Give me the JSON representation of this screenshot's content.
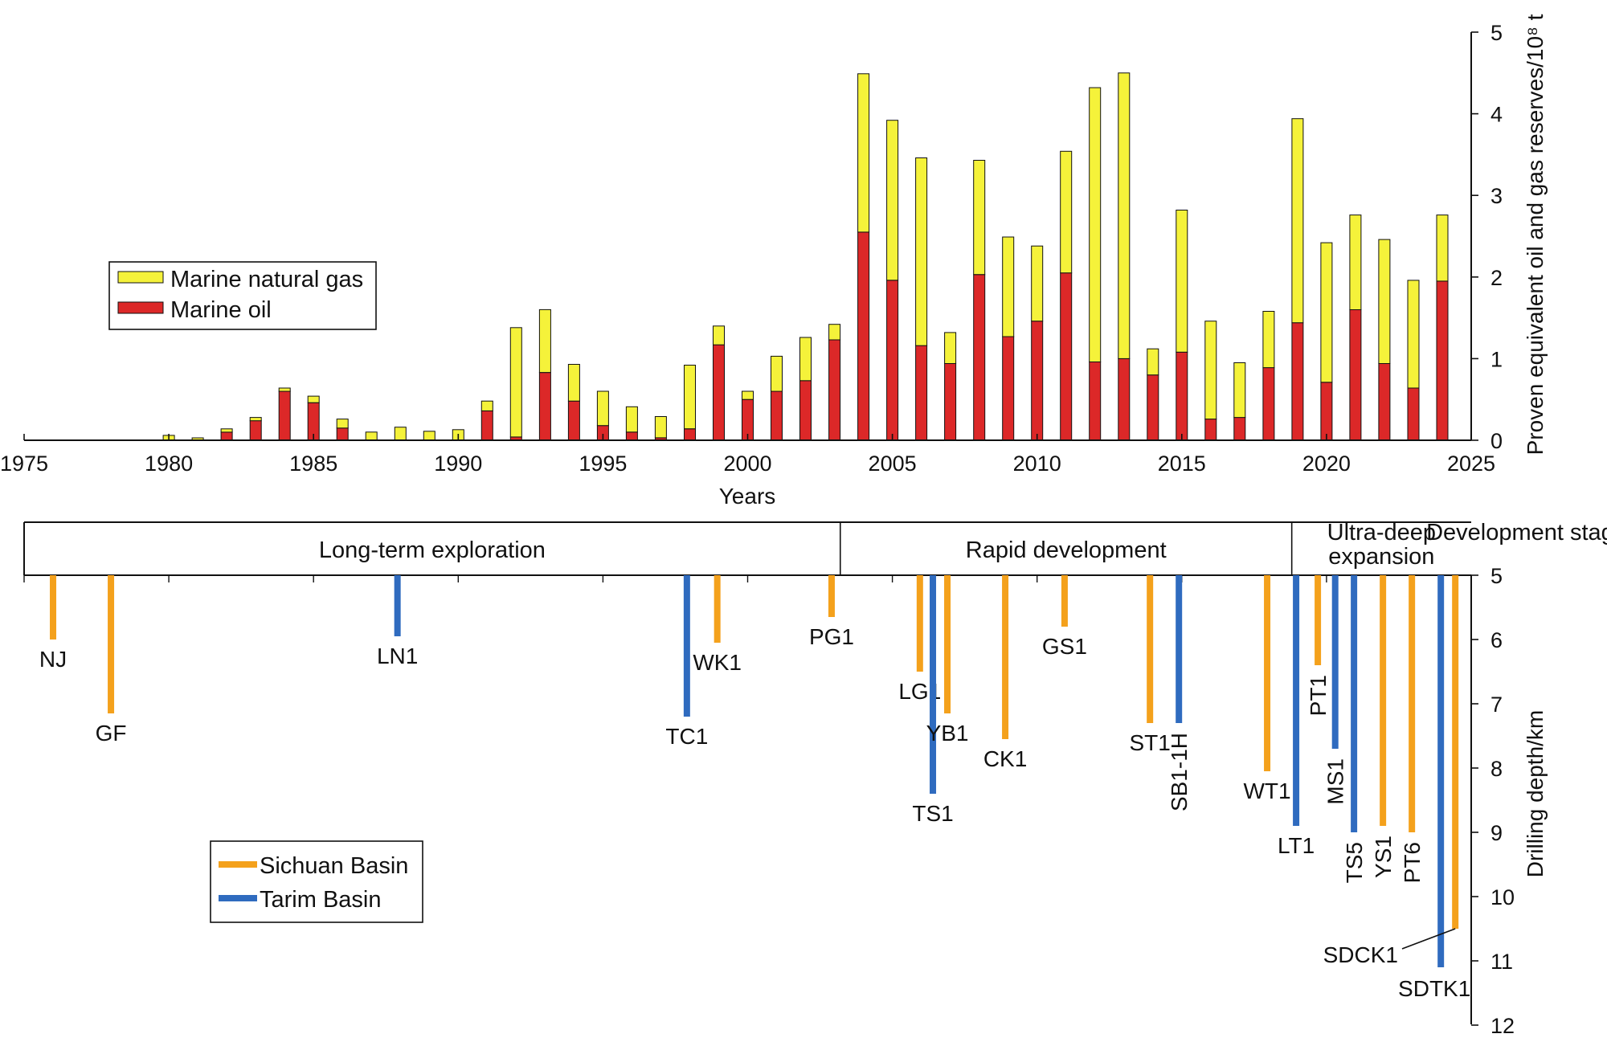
{
  "colors": {
    "marine_gas": "#f5f23a",
    "marine_oil": "#dc2828",
    "sichuan": "#f4a11c",
    "tarim": "#2f6bbf",
    "axis": "#111111"
  },
  "chart_data": [
    {
      "type": "bar",
      "stacked": true,
      "xlabel": "Years",
      "ylabel": "Proven equivalent oil and gas reserves/10⁸ t",
      "xlim": [
        1975,
        2025
      ],
      "ylim": [
        0,
        5
      ],
      "x_ticks": [
        "1975",
        "1980",
        "1985",
        "1990",
        "1995",
        "2000",
        "2005",
        "2010",
        "2015",
        "2020",
        "2025"
      ],
      "y_ticks": [
        "0",
        "1",
        "2",
        "3",
        "4",
        "5"
      ],
      "legend_position": "left",
      "years": [
        1980,
        1981,
        1982,
        1983,
        1984,
        1985,
        1986,
        1987,
        1988,
        1989,
        1990,
        1991,
        1992,
        1993,
        1994,
        1995,
        1996,
        1997,
        1998,
        1999,
        2000,
        2001,
        2002,
        2003,
        2004,
        2005,
        2006,
        2007,
        2008,
        2009,
        2010,
        2011,
        2012,
        2013,
        2014,
        2015,
        2016,
        2017,
        2018,
        2019,
        2020,
        2021,
        2022,
        2023,
        2024
      ],
      "series": [
        {
          "name": "Marine oil",
          "color_key": "marine_oil",
          "values": [
            0,
            0,
            0.1,
            0.24,
            0.6,
            0.46,
            0.15,
            0,
            0,
            0,
            0,
            0.36,
            0.04,
            0.83,
            0.48,
            0.18,
            0.1,
            0.03,
            0.14,
            1.17,
            0.5,
            0.6,
            0.73,
            1.23,
            2.55,
            1.96,
            1.16,
            0.94,
            2.03,
            1.27,
            1.46,
            2.05,
            0.96,
            1.0,
            0.8,
            1.08,
            0.26,
            0.28,
            0.89,
            1.44,
            0.71,
            1.6,
            0.94,
            0.64,
            1.95
          ]
        },
        {
          "name": "Marine natural gas",
          "color_key": "marine_gas",
          "values": [
            0.06,
            0.03,
            0.04,
            0.04,
            0.04,
            0.08,
            0.11,
            0.1,
            0.16,
            0.11,
            0.13,
            0.12,
            1.34,
            0.77,
            0.45,
            0.42,
            0.31,
            0.26,
            0.78,
            0.23,
            0.1,
            0.43,
            0.53,
            0.19,
            1.94,
            1.96,
            2.3,
            0.38,
            1.4,
            1.22,
            0.92,
            1.49,
            3.36,
            3.5,
            0.32,
            1.74,
            1.2,
            0.67,
            0.69,
            2.5,
            1.71,
            1.16,
            1.52,
            1.32,
            0.81
          ]
        }
      ]
    },
    {
      "type": "bar",
      "orientation": "vertical-hanging",
      "ylabel": "Drilling depth/km",
      "ylim": [
        5,
        12
      ],
      "y_ticks": [
        "5",
        "6",
        "7",
        "8",
        "9",
        "10",
        "11",
        "12"
      ],
      "stage_header": "Development stage",
      "stages": [
        {
          "label": "Long-term exploration",
          "from": 1975,
          "to": 2003.2
        },
        {
          "label": "Rapid development",
          "from": 2003.2,
          "to": 2018.8
        },
        {
          "label": "Ultra-deep expansion",
          "from": 2018.8,
          "to": 2025
        }
      ],
      "legend_position": "bottom-left",
      "series": [
        {
          "name": "Sichuan Basin",
          "color_key": "sichuan"
        },
        {
          "name": "Tarim Basin",
          "color_key": "tarim"
        }
      ],
      "wells": [
        {
          "name": "NJ",
          "year": 1976,
          "depth": 6.0,
          "basin": "sichuan"
        },
        {
          "name": "GF",
          "year": 1978,
          "depth": 7.15,
          "basin": "sichuan"
        },
        {
          "name": "LN1",
          "year": 1987.9,
          "depth": 5.95,
          "basin": "tarim"
        },
        {
          "name": "TC1",
          "year": 1997.9,
          "depth": 7.2,
          "basin": "tarim"
        },
        {
          "name": "WK1",
          "year": 1998.95,
          "depth": 6.05,
          "basin": "sichuan"
        },
        {
          "name": "PG1",
          "year": 2002.9,
          "depth": 5.65,
          "basin": "sichuan"
        },
        {
          "name": "LG1",
          "year": 2005.95,
          "depth": 6.5,
          "basin": "sichuan"
        },
        {
          "name": "TS1",
          "year": 2006.4,
          "depth": 8.4,
          "basin": "tarim"
        },
        {
          "name": "YB1",
          "year": 2006.9,
          "depth": 7.15,
          "basin": "sichuan"
        },
        {
          "name": "CK1",
          "year": 2008.9,
          "depth": 7.55,
          "basin": "sichuan"
        },
        {
          "name": "GS1",
          "year": 2010.95,
          "depth": 5.8,
          "basin": "sichuan"
        },
        {
          "name": "ST1",
          "year": 2013.9,
          "depth": 7.3,
          "basin": "sichuan"
        },
        {
          "name": "SB1-1H",
          "year": 2014.9,
          "depth": 7.3,
          "basin": "tarim"
        },
        {
          "name": "WT1",
          "year": 2017.95,
          "depth": 8.05,
          "basin": "sichuan"
        },
        {
          "name": "LT1",
          "year": 2018.95,
          "depth": 8.9,
          "basin": "tarim"
        },
        {
          "name": "PT1",
          "year": 2019.7,
          "depth": 6.4,
          "basin": "sichuan"
        },
        {
          "name": "MS1",
          "year": 2020.3,
          "depth": 7.7,
          "basin": "tarim"
        },
        {
          "name": "TS5",
          "year": 2020.95,
          "depth": 9.0,
          "basin": "tarim"
        },
        {
          "name": "YS1",
          "year": 2021.95,
          "depth": 8.9,
          "basin": "sichuan"
        },
        {
          "name": "PT6",
          "year": 2022.95,
          "depth": 9.0,
          "basin": "sichuan"
        },
        {
          "name": "SDTK1",
          "year": 2023.95,
          "depth": 11.1,
          "basin": "tarim"
        },
        {
          "name": "SDCK1",
          "year": 2024.45,
          "depth": 10.5,
          "basin": "sichuan"
        }
      ]
    }
  ]
}
